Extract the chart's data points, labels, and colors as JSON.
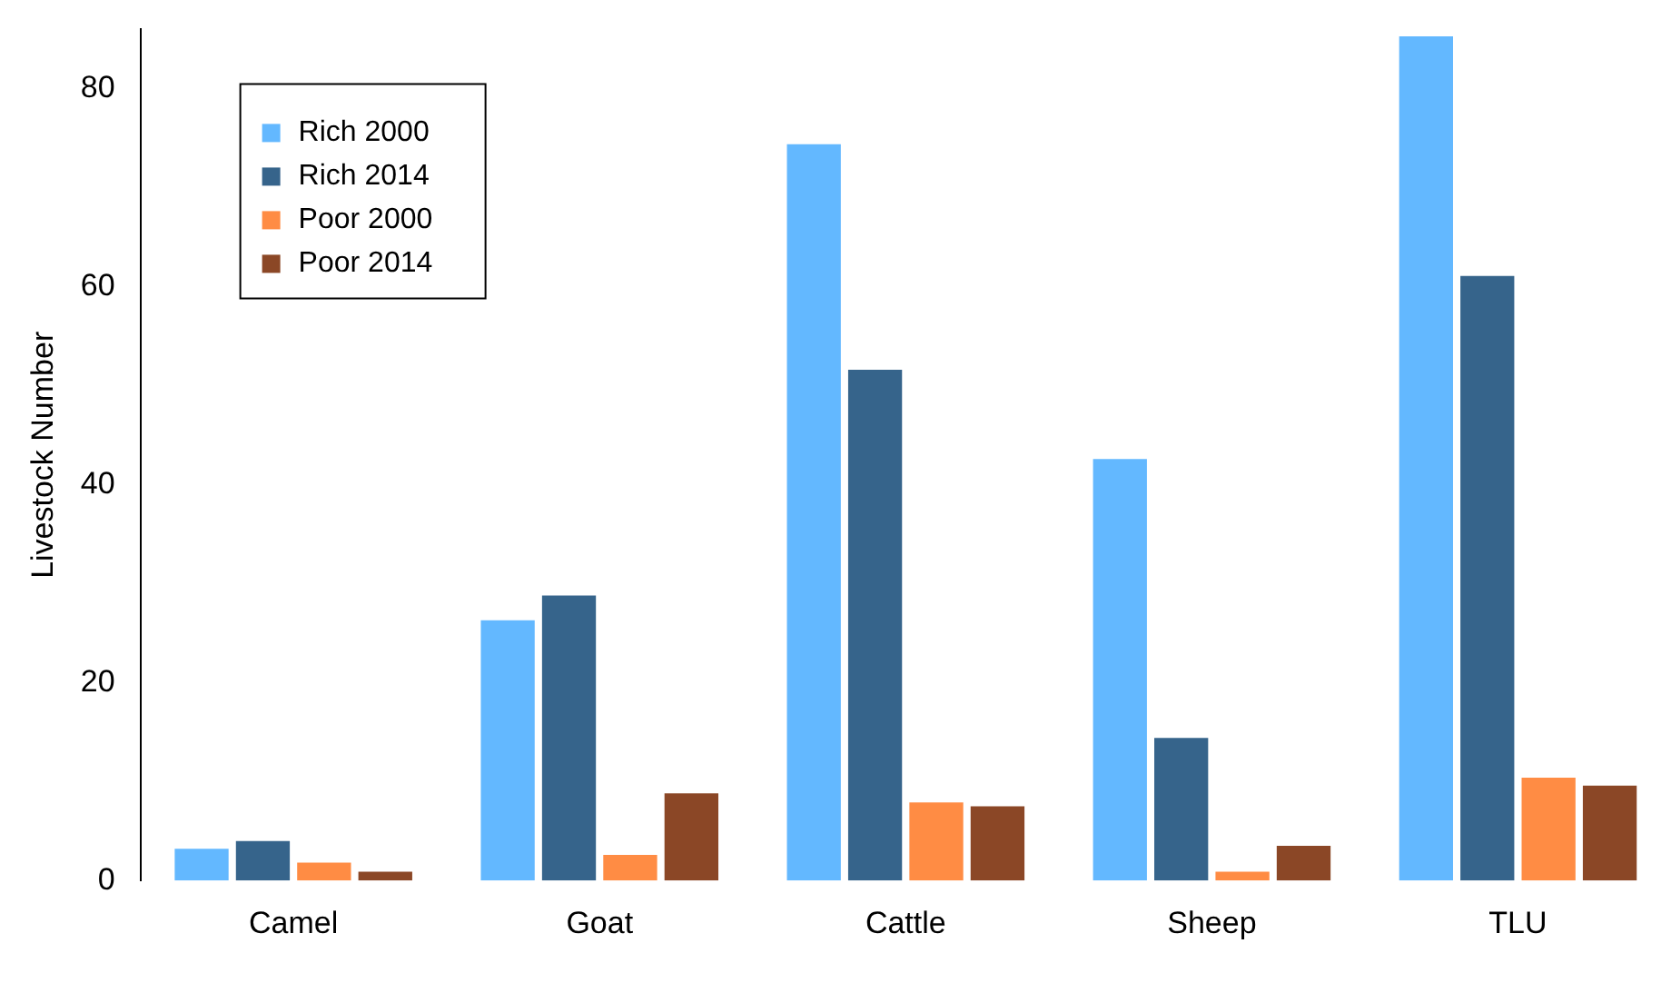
{
  "chart_data": {
    "type": "bar",
    "ylabel": "Livestock Number",
    "categories": [
      "Camel",
      "Goat",
      "Cattle",
      "Sheep",
      "TLU"
    ],
    "series": [
      {
        "name": "Rich 2000",
        "color": "#63b8ff",
        "values": [
          3.2,
          26.3,
          74.4,
          42.6,
          85.3
        ]
      },
      {
        "name": "Rich 2014",
        "color": "#36648b",
        "values": [
          4.0,
          28.8,
          51.6,
          14.4,
          61.1
        ]
      },
      {
        "name": "Poor 2000",
        "color": "#ff8c44",
        "values": [
          1.8,
          2.6,
          7.9,
          0.9,
          10.4
        ]
      },
      {
        "name": "Poor 2014",
        "color": "#8b4726",
        "values": [
          0.9,
          8.8,
          7.5,
          3.5,
          9.6
        ]
      }
    ],
    "ylim": [
      0,
      86
    ],
    "yticks": [
      0,
      20,
      40,
      60,
      80
    ],
    "grid": false,
    "legend": "top left"
  }
}
